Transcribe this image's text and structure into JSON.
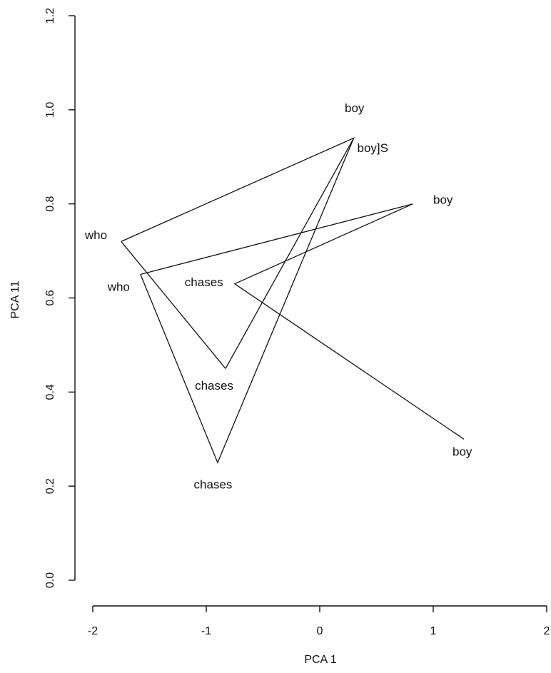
{
  "chart_data": {
    "type": "line",
    "xlabel": "PCA 1",
    "ylabel": "PCA 11",
    "xlim": [
      -2,
      2
    ],
    "ylim": [
      0,
      1.2
    ],
    "x_ticks": [
      "-2",
      "-1",
      "0",
      "1",
      "2"
    ],
    "y_ticks": [
      "0.0",
      "0.2",
      "0.4",
      "0.6",
      "0.8",
      "1.0",
      "1.2"
    ],
    "grid": false,
    "series": [
      {
        "points": [
          {
            "x": -1.75,
            "y": 0.72
          },
          {
            "x": 0.3,
            "y": 0.94
          },
          {
            "x": -0.83,
            "y": 0.45
          },
          {
            "x": 0.3,
            "y": 0.94
          }
        ]
      },
      {
        "points": [
          {
            "x": -1.58,
            "y": 0.65
          },
          {
            "x": 0.82,
            "y": 0.8
          },
          {
            "x": -0.75,
            "y": 0.63
          },
          {
            "x": 1.27,
            "y": 0.3
          }
        ]
      },
      {
        "points": [
          {
            "x": -1.75,
            "y": 0.72
          },
          {
            "x": -0.83,
            "y": 0.45
          }
        ]
      },
      {
        "points": [
          {
            "x": -1.58,
            "y": 0.65
          },
          {
            "x": -0.9,
            "y": 0.25
          },
          {
            "x": 0.3,
            "y": 0.94
          }
        ]
      }
    ],
    "annotations": [
      {
        "text": "boy",
        "x": 0.22,
        "y": 0.995
      },
      {
        "text": "boy]S",
        "x": 0.33,
        "y": 0.91
      },
      {
        "text": "boy",
        "x": 1.0,
        "y": 0.8
      },
      {
        "text": "who",
        "x": -2.07,
        "y": 0.725
      },
      {
        "text": "who",
        "x": -1.87,
        "y": 0.615
      },
      {
        "text": "chases",
        "x": -1.19,
        "y": 0.625
      },
      {
        "text": "chases",
        "x": -1.1,
        "y": 0.405
      },
      {
        "text": "chases",
        "x": -1.11,
        "y": 0.195
      },
      {
        "text": "boy",
        "x": 1.17,
        "y": 0.265
      }
    ]
  }
}
